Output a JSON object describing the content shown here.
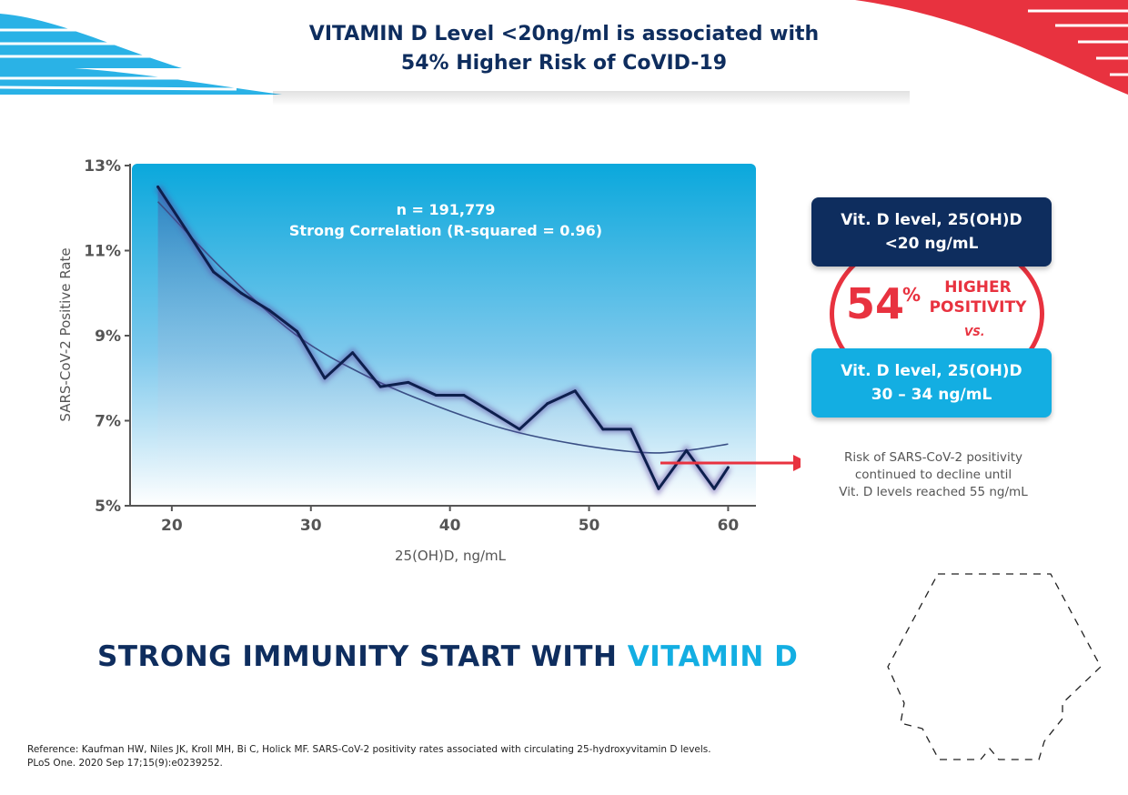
{
  "header": {
    "title_line1": "VITAMIN D Level <20ng/ml is associated with",
    "title_line2": "54% Higher Risk of CoVID-19"
  },
  "colors": {
    "navy": "#0e2d5e",
    "cyan": "#13aee2",
    "red": "#e8323f",
    "light_blue_band": "#2ab2e6",
    "line": "#0d1f4d"
  },
  "chart_data": {
    "type": "line",
    "title": "",
    "xlabel": "25(OH)D, ng/mL",
    "ylabel": "SARS-CoV-2 Positive Rate",
    "xlim": [
      17,
      62
    ],
    "ylim": [
      5,
      13
    ],
    "x_ticks": [
      20,
      30,
      40,
      50,
      60
    ],
    "y_ticks": [
      5,
      7,
      9,
      11,
      13
    ],
    "y_tick_labels": [
      "5%",
      "7%",
      "9%",
      "11%",
      "13%"
    ],
    "annotation_line1": "n = 191,779",
    "annotation_line2": "Strong Correlation (R-squared = 0.96)",
    "series": [
      {
        "x": [
          19,
          21,
          23,
          25,
          27,
          29,
          31,
          33,
          35,
          37,
          39,
          41,
          43,
          45,
          47,
          49,
          51,
          53,
          55,
          57,
          59,
          60
        ],
        "values": [
          12.5,
          11.5,
          10.5,
          10.0,
          9.6,
          9.1,
          8.0,
          8.6,
          7.8,
          7.9,
          7.6,
          7.6,
          7.2,
          6.8,
          7.4,
          7.7,
          6.8,
          6.8,
          5.4,
          6.3,
          5.4,
          5.9
        ]
      }
    ],
    "trendline": {
      "x": [
        19,
        24,
        29,
        34,
        39,
        44,
        49,
        54,
        57,
        60
      ],
      "values": [
        12.15,
        10.45,
        9.0,
        8.05,
        7.35,
        6.8,
        6.45,
        6.25,
        6.3,
        6.45
      ]
    }
  },
  "callout": {
    "top_line1": "Vit. D level, 25(OH)D",
    "top_line2": "<20 ng/mL",
    "percent_number": "54",
    "percent_sign": "%",
    "higher": "HIGHER",
    "positivity": "POSITIVITY",
    "vs": "VS.",
    "bottom_line1": "Vit. D level, 25(OH)D",
    "bottom_line2": "30 – 34 ng/mL"
  },
  "note": {
    "line1": "Risk of SARS-CoV-2 positivity",
    "line2": "continued to decline until",
    "line3": "Vit. D levels reached 55 ng/mL"
  },
  "tagline": {
    "part1": "STRONG IMMUNITY START WITH ",
    "part2": "VITAMIN D"
  },
  "reference": {
    "line1": "Reference: Kaufman HW, Niles JK, Kroll MH, Bi C, Holick MF. SARS-CoV-2 positivity rates associated with circulating 25-hydroxyvitamin D levels.",
    "line2": "PLoS One. 2020 Sep 17;15(9):e0239252."
  }
}
